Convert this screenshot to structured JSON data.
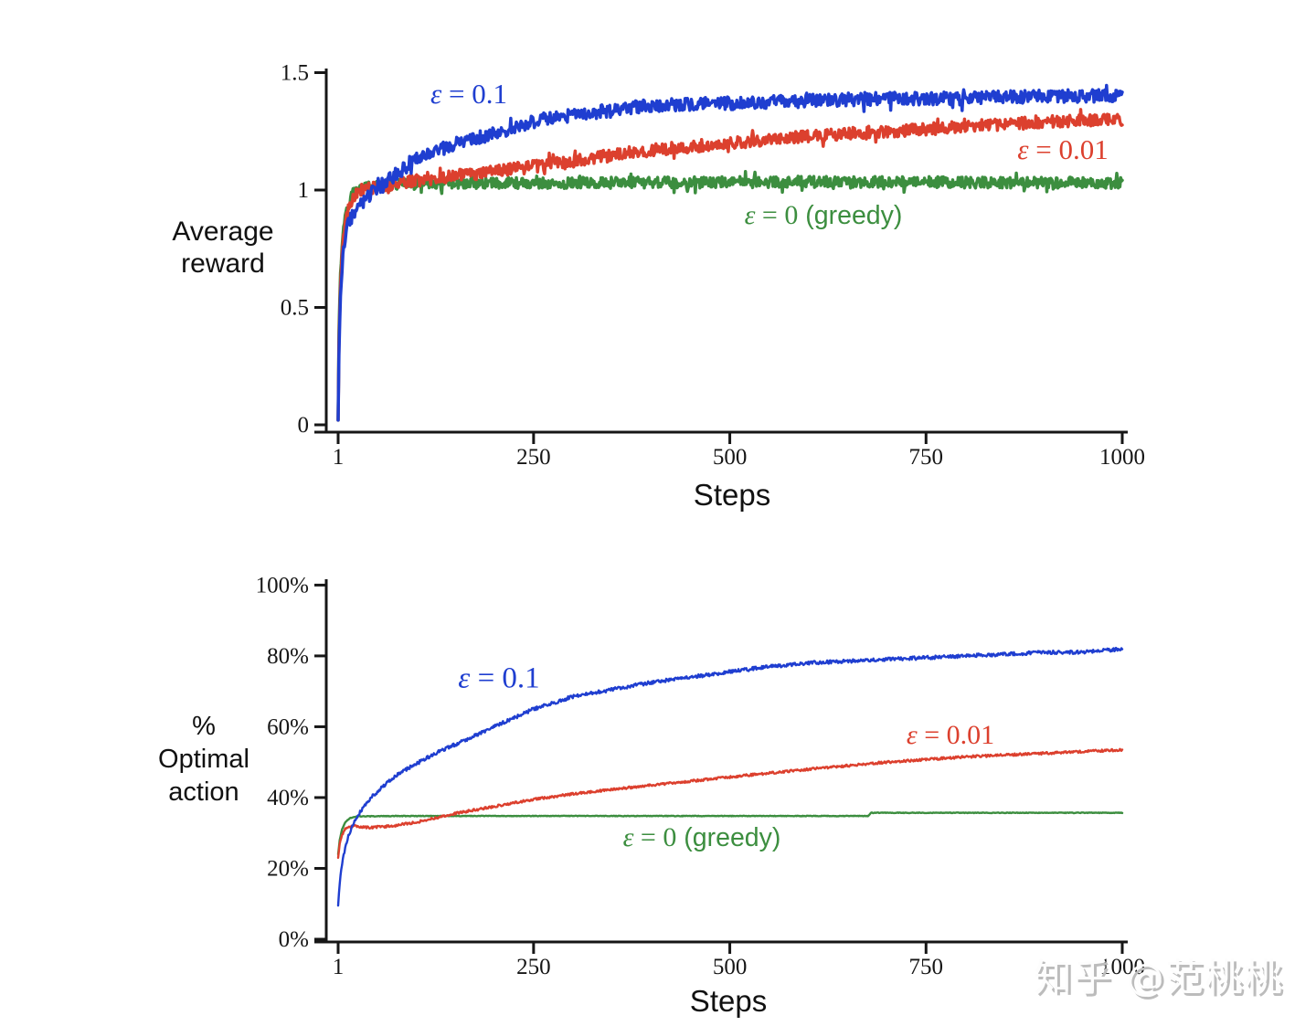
{
  "watermark": {
    "text": "知乎 @范桃桃",
    "color": "#bcbcbc"
  },
  "axis_color": "#161616",
  "chart_data": [
    {
      "type": "line",
      "title": "",
      "xlabel": "Steps",
      "ylabel": "Average reward",
      "xlim": [
        1,
        1000
      ],
      "ylim": [
        0,
        1.5
      ],
      "grid": false,
      "legend_position": "inline-annotations",
      "x_ticks": [
        "1",
        "250",
        "500",
        "750",
        "1000"
      ],
      "x_tick_values": [
        1,
        250,
        500,
        750,
        1000
      ],
      "y_ticks": [
        "0",
        "0.5",
        "1",
        "1.5"
      ],
      "y_tick_values": [
        0,
        0.5,
        1,
        1.5
      ],
      "series": [
        {
          "name": "ε = 0.1",
          "color": "#1f3ed0",
          "noise": 0.028,
          "anchors": [
            [
              1,
              0.02
            ],
            [
              2,
              0.3
            ],
            [
              4,
              0.55
            ],
            [
              7,
              0.72
            ],
            [
              12,
              0.84
            ],
            [
              20,
              0.9
            ],
            [
              30,
              0.94
            ],
            [
              45,
              0.99
            ],
            [
              60,
              1.03
            ],
            [
              80,
              1.08
            ],
            [
              100,
              1.13
            ],
            [
              130,
              1.17
            ],
            [
              160,
              1.21
            ],
            [
              200,
              1.24
            ],
            [
              250,
              1.29
            ],
            [
              300,
              1.32
            ],
            [
              350,
              1.34
            ],
            [
              400,
              1.36
            ],
            [
              500,
              1.37
            ],
            [
              600,
              1.38
            ],
            [
              700,
              1.39
            ],
            [
              800,
              1.39
            ],
            [
              900,
              1.4
            ],
            [
              1000,
              1.4
            ]
          ]
        },
        {
          "name": "ε = 0.01",
          "color": "#dc402e",
          "noise": 0.026,
          "anchors": [
            [
              1,
              0.02
            ],
            [
              2,
              0.35
            ],
            [
              4,
              0.6
            ],
            [
              7,
              0.78
            ],
            [
              12,
              0.9
            ],
            [
              20,
              0.97
            ],
            [
              30,
              1.0
            ],
            [
              60,
              1.02
            ],
            [
              100,
              1.04
            ],
            [
              150,
              1.06
            ],
            [
              200,
              1.08
            ],
            [
              250,
              1.1
            ],
            [
              300,
              1.12
            ],
            [
              350,
              1.15
            ],
            [
              400,
              1.17
            ],
            [
              500,
              1.2
            ],
            [
              600,
              1.23
            ],
            [
              700,
              1.25
            ],
            [
              800,
              1.27
            ],
            [
              900,
              1.29
            ],
            [
              1000,
              1.3
            ]
          ]
        },
        {
          "name": "ε = 0 (greedy)",
          "color": "#3c8e3f",
          "noise": 0.024,
          "anchors": [
            [
              1,
              0.02
            ],
            [
              2,
              0.4
            ],
            [
              4,
              0.65
            ],
            [
              7,
              0.8
            ],
            [
              12,
              0.92
            ],
            [
              20,
              0.99
            ],
            [
              30,
              1.01
            ],
            [
              60,
              1.02
            ],
            [
              120,
              1.03
            ],
            [
              300,
              1.03
            ],
            [
              600,
              1.035
            ],
            [
              1000,
              1.03
            ]
          ]
        }
      ],
      "annotations": [
        {
          "eps": "ε",
          "rest": " = 0.1",
          "suffix": ""
        },
        {
          "eps": "ε",
          "rest": " = 0.01",
          "suffix": ""
        },
        {
          "eps": "ε",
          "rest": " = 0",
          "suffix": " (greedy)"
        }
      ]
    },
    {
      "type": "line",
      "title": "",
      "xlabel": "Steps",
      "ylabel": "% Optimal action",
      "xlim": [
        1,
        1000
      ],
      "ylim": [
        0,
        100
      ],
      "grid": false,
      "legend_position": "inline-annotations",
      "x_ticks": [
        "1",
        "250",
        "500",
        "750",
        "1000"
      ],
      "x_tick_values": [
        1,
        250,
        500,
        750,
        1000
      ],
      "y_ticks": [
        "0%",
        "20%",
        "40%",
        "60%",
        "80%",
        "100%"
      ],
      "y_tick_values": [
        0,
        20,
        40,
        60,
        80,
        100
      ],
      "series": [
        {
          "name": "ε = 0.1",
          "color": "#1f3ed0",
          "noise": 0.5,
          "anchors": [
            [
              1,
              9.5
            ],
            [
              2,
              13
            ],
            [
              4,
              18
            ],
            [
              8,
              24
            ],
            [
              14,
              29
            ],
            [
              22,
              33.5
            ],
            [
              32,
              37
            ],
            [
              45,
              40.5
            ],
            [
              60,
              43.5
            ],
            [
              80,
              47
            ],
            [
              100,
              49.5
            ],
            [
              130,
              53
            ],
            [
              160,
              56
            ],
            [
              200,
              60
            ],
            [
              250,
              65
            ],
            [
              300,
              68.5
            ],
            [
              350,
              70.5
            ],
            [
              400,
              72.5
            ],
            [
              450,
              74
            ],
            [
              500,
              75.5
            ],
            [
              550,
              77
            ],
            [
              600,
              78
            ],
            [
              650,
              78.5
            ],
            [
              700,
              79
            ],
            [
              750,
              79.5
            ],
            [
              800,
              80
            ],
            [
              850,
              80.5
            ],
            [
              900,
              81
            ],
            [
              950,
              81
            ],
            [
              1000,
              82
            ]
          ]
        },
        {
          "name": "ε = 0.01",
          "color": "#dc402e",
          "noise": 0.33,
          "anchors": [
            [
              1,
              23
            ],
            [
              3,
              27
            ],
            [
              6,
              29.5
            ],
            [
              10,
              31
            ],
            [
              20,
              32
            ],
            [
              40,
              31.5
            ],
            [
              70,
              32
            ],
            [
              100,
              33
            ],
            [
              150,
              35.5
            ],
            [
              200,
              37.5
            ],
            [
              250,
              39.5
            ],
            [
              300,
              41
            ],
            [
              400,
              43.5
            ],
            [
              500,
              45.8
            ],
            [
              600,
              48
            ],
            [
              700,
              50
            ],
            [
              800,
              51.5
            ],
            [
              900,
              52.5
            ],
            [
              1000,
              53.5
            ]
          ]
        },
        {
          "name": "ε = 0 (greedy)",
          "color": "#3c8e3f",
          "noise": 0.09,
          "anchors": [
            [
              1,
              24
            ],
            [
              3,
              28
            ],
            [
              6,
              31
            ],
            [
              10,
              33
            ],
            [
              16,
              34.2
            ],
            [
              25,
              34.7
            ],
            [
              40,
              34.7
            ],
            [
              80,
              34.8
            ],
            [
              300,
              34.8
            ],
            [
              676,
              34.8
            ],
            [
              680,
              35.7
            ],
            [
              1000,
              35.7
            ]
          ]
        }
      ],
      "annotations": [
        {
          "eps": "ε",
          "rest": " = 0.1",
          "suffix": ""
        },
        {
          "eps": "ε",
          "rest": " = 0.01",
          "suffix": ""
        },
        {
          "eps": "ε",
          "rest": " = 0",
          "suffix": " (greedy)"
        }
      ]
    }
  ]
}
